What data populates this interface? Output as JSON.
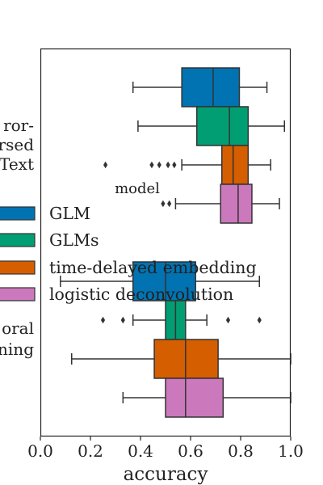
{
  "chart_data": {
    "type": "box",
    "xlabel": "accuracy",
    "ylabel": "",
    "xlim": [
      0.0,
      1.0
    ],
    "xticks": [
      "0.0",
      "0.2",
      "0.4",
      "0.6",
      "0.8",
      "1.0"
    ],
    "ytick_label_lines": [
      [
        "ror-",
        "rsed",
        "Text"
      ],
      [
        "oral",
        "ning"
      ]
    ],
    "legend": {
      "title": "model",
      "placement": "left-center",
      "entries": [
        {
          "name": "GLM",
          "color": "#0173b2"
        },
        {
          "name": "GLMs",
          "color": "#029e73"
        },
        {
          "name": "time-delayed embedding",
          "color": "#d55e00"
        },
        {
          "name": "logistic deconvolution",
          "color": "#cc78bc"
        }
      ]
    },
    "groups": [
      {
        "boxes": [
          {
            "series": "GLM",
            "whisker_low": 0.37,
            "q1": 0.565,
            "median": 0.69,
            "q3": 0.795,
            "whisker_high": 0.905,
            "outliers": []
          },
          {
            "series": "GLMs",
            "whisker_low": 0.39,
            "q1": 0.625,
            "median": 0.755,
            "q3": 0.83,
            "whisker_high": 0.975,
            "outliers": []
          },
          {
            "series": "time-delayed embedding",
            "whisker_low": 0.565,
            "q1": 0.725,
            "median": 0.77,
            "q3": 0.83,
            "whisker_high": 0.92,
            "outliers": [
              0.26,
              0.445,
              0.475,
              0.51,
              0.535
            ]
          },
          {
            "series": "logistic deconvolution",
            "whisker_low": 0.54,
            "q1": 0.72,
            "median": 0.79,
            "q3": 0.845,
            "whisker_high": 0.955,
            "outliers": [
              0.49,
              0.515
            ]
          }
        ]
      },
      {
        "boxes": [
          {
            "series": "GLM",
            "whisker_low": 0.08,
            "q1": 0.37,
            "median": 0.5,
            "q3": 0.62,
            "whisker_high": 0.875,
            "outliers": []
          },
          {
            "series": "GLMs",
            "whisker_low": 0.37,
            "q1": 0.5,
            "median": 0.54,
            "q3": 0.58,
            "whisker_high": 0.665,
            "outliers": [
              0.25,
              0.33,
              0.75,
              0.875
            ]
          },
          {
            "series": "time-delayed embedding",
            "whisker_low": 0.125,
            "q1": 0.455,
            "median": 0.58,
            "q3": 0.71,
            "whisker_high": 1.0,
            "outliers": []
          },
          {
            "series": "logistic deconvolution",
            "whisker_low": 0.33,
            "q1": 0.5,
            "median": 0.58,
            "q3": 0.73,
            "whisker_high": 1.0,
            "outliers": []
          }
        ]
      }
    ]
  }
}
